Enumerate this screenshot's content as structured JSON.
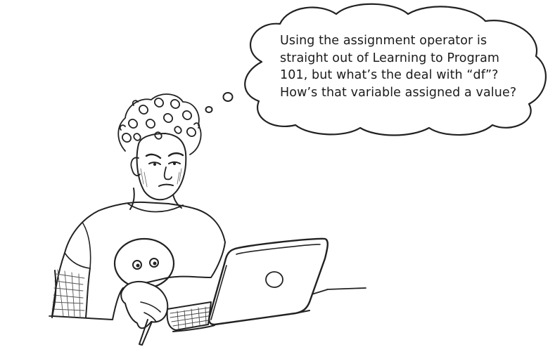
{
  "thought_bubble": {
    "lines": [
      "Using the assignment operator is",
      "straight out of Learning  to Program",
      "101, but what’s the deal with “df”?",
      "How’s that variable assigned a value?"
    ]
  },
  "illustration": {
    "subject": "person-at-laptop",
    "ink_color": "#222222",
    "paper_color": "#ffffff"
  }
}
